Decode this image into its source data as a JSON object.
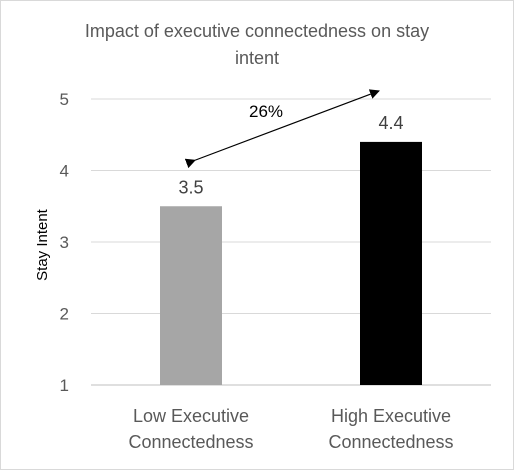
{
  "chart_data": {
    "type": "bar",
    "title_lines": [
      "Impact of executive connectedness on stay",
      "intent"
    ],
    "title": "Impact of executive connectedness on stay intent",
    "xlabel": "",
    "ylabel": "Stay Intent",
    "ylim": [
      1,
      5
    ],
    "yticks": [
      1,
      2,
      3,
      4,
      5
    ],
    "grid": true,
    "legend": "none",
    "categories": [
      [
        "Low Executive",
        "Connectedness"
      ],
      [
        "High Executive",
        "Connectedness"
      ]
    ],
    "values": [
      3.5,
      4.4
    ],
    "data_labels": [
      "3.5",
      "4.4"
    ],
    "colors": [
      "#a6a6a6",
      "#000000"
    ],
    "annotation": {
      "text": "26%",
      "from_category": 0,
      "to_category": 1
    }
  }
}
